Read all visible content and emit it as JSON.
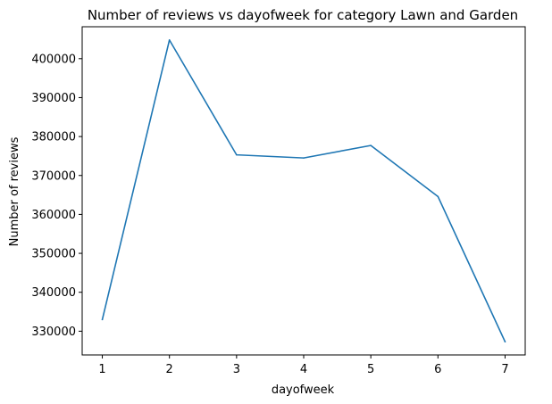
{
  "chart_data": {
    "type": "line",
    "title": "Number of reviews vs dayofweek for category Lawn and Garden",
    "xlabel": "dayofweek",
    "ylabel": "Number of reviews",
    "x": [
      1,
      2,
      3,
      4,
      5,
      6,
      7
    ],
    "values": [
      333000,
      404800,
      375300,
      374500,
      377700,
      364600,
      327300
    ],
    "xticks": [
      1,
      2,
      3,
      4,
      5,
      6,
      7
    ],
    "yticks": [
      330000,
      340000,
      350000,
      360000,
      370000,
      380000,
      390000,
      400000
    ],
    "xlim": [
      0.7,
      7.3
    ],
    "ylim": [
      323900,
      408200
    ],
    "grid": false,
    "line_color": "#1f77b4"
  }
}
